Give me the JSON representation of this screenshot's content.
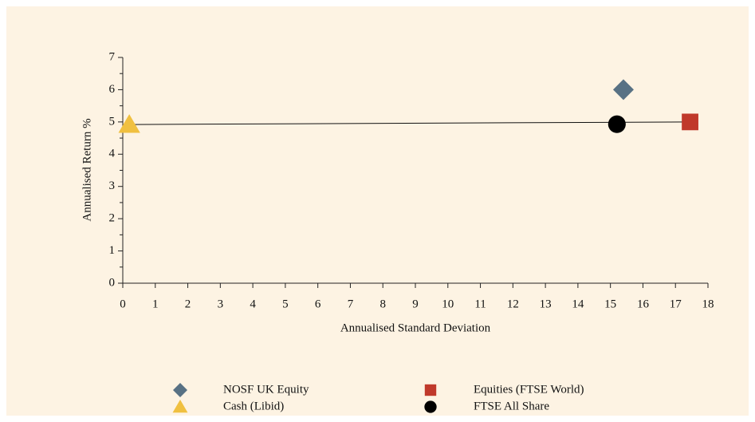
{
  "chart_data": {
    "type": "scatter",
    "xlabel": "Annualised Standard Deviation",
    "ylabel": "Annualised Return %",
    "xlim": [
      0,
      18
    ],
    "xticks": [
      0,
      1,
      2,
      3,
      4,
      5,
      6,
      7,
      8,
      9,
      10,
      11,
      12,
      13,
      14,
      15,
      16,
      17,
      18
    ],
    "ylim": [
      0,
      7
    ],
    "yticks": [
      0,
      1,
      2,
      3,
      4,
      5,
      6,
      7
    ],
    "series": [
      {
        "name": "NOSF UK Equity",
        "color": "#587184",
        "marker": "diamond",
        "x": [
          15.4
        ],
        "values": [
          6.0
        ]
      },
      {
        "name": "Equities (FTSE World)",
        "color": "#c0392b",
        "marker": "square",
        "x": [
          17.45
        ],
        "values": [
          5.0
        ]
      },
      {
        "name": "Cash (Libid)",
        "color": "#f0c040",
        "marker": "triangle",
        "x": [
          0.2
        ],
        "values": [
          4.92
        ]
      },
      {
        "name": "FTSE All Share",
        "color": "#000000",
        "marker": "circle",
        "x": [
          15.2
        ],
        "values": [
          4.93
        ]
      }
    ]
  }
}
